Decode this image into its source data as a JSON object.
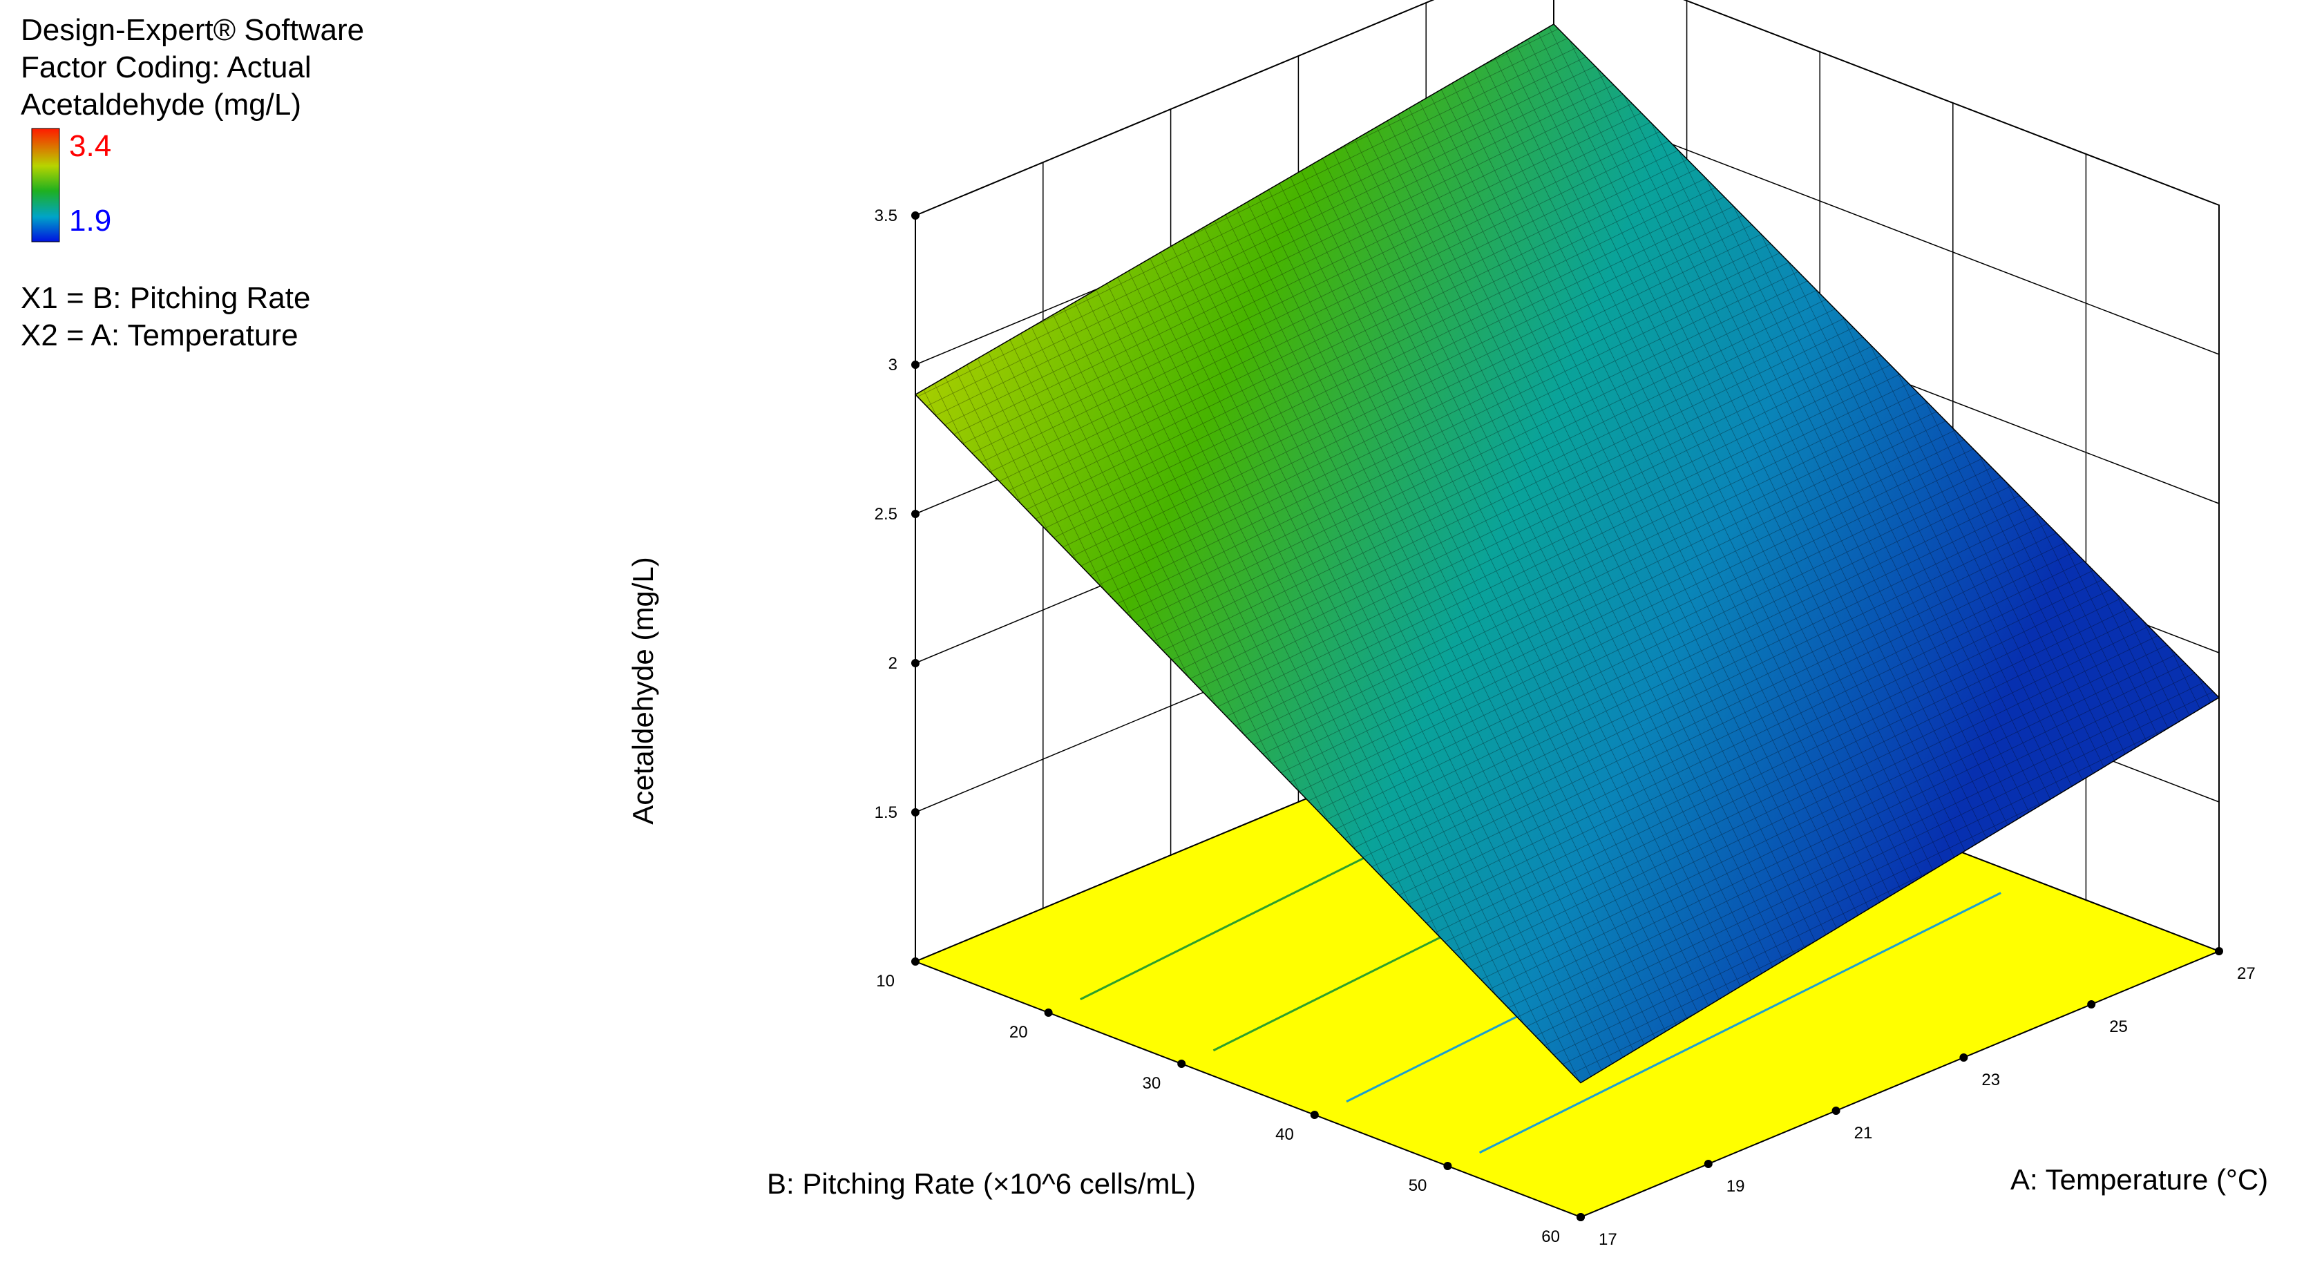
{
  "legend": {
    "software": "Design-Expert® Software",
    "coding": "Factor Coding: Actual",
    "response": "Acetaldehyde (mg/L)",
    "high_value": "3.4",
    "low_value": "1.9",
    "x1": "X1 = B: Pitching Rate",
    "x2": "X2 = A: Temperature",
    "high_color": "#ff0000",
    "low_color": "#0000ff"
  },
  "chart_data": {
    "type": "surface",
    "zlabel": "Acetaldehyde (mg/L)",
    "xlabel": "B: Pitching Rate (×10^6 cells/mL)",
    "ylabel": "A: Temperature (°C)",
    "x_ticks": [
      "10",
      "20",
      "30",
      "40",
      "50",
      "60"
    ],
    "y_ticks": [
      "17",
      "19",
      "21",
      "23",
      "25",
      "27"
    ],
    "z_ticks": [
      "1.5",
      "2",
      "2.5",
      "3",
      "3.5"
    ],
    "xlim": [
      10,
      60
    ],
    "ylim": [
      17,
      27
    ],
    "zlim": [
      1,
      3.5
    ],
    "corner_values": [
      {
        "pitching_rate": 10,
        "temperature": 17,
        "acetaldehyde": 2.9
      },
      {
        "pitching_rate": 10,
        "temperature": 27,
        "acetaldehyde": 3.25
      },
      {
        "pitching_rate": 60,
        "temperature": 17,
        "acetaldehyde": 1.45
      },
      {
        "pitching_rate": 60,
        "temperature": 27,
        "acetaldehyde": 1.85
      }
    ],
    "floor_color": "#ffff00",
    "grid": true
  }
}
